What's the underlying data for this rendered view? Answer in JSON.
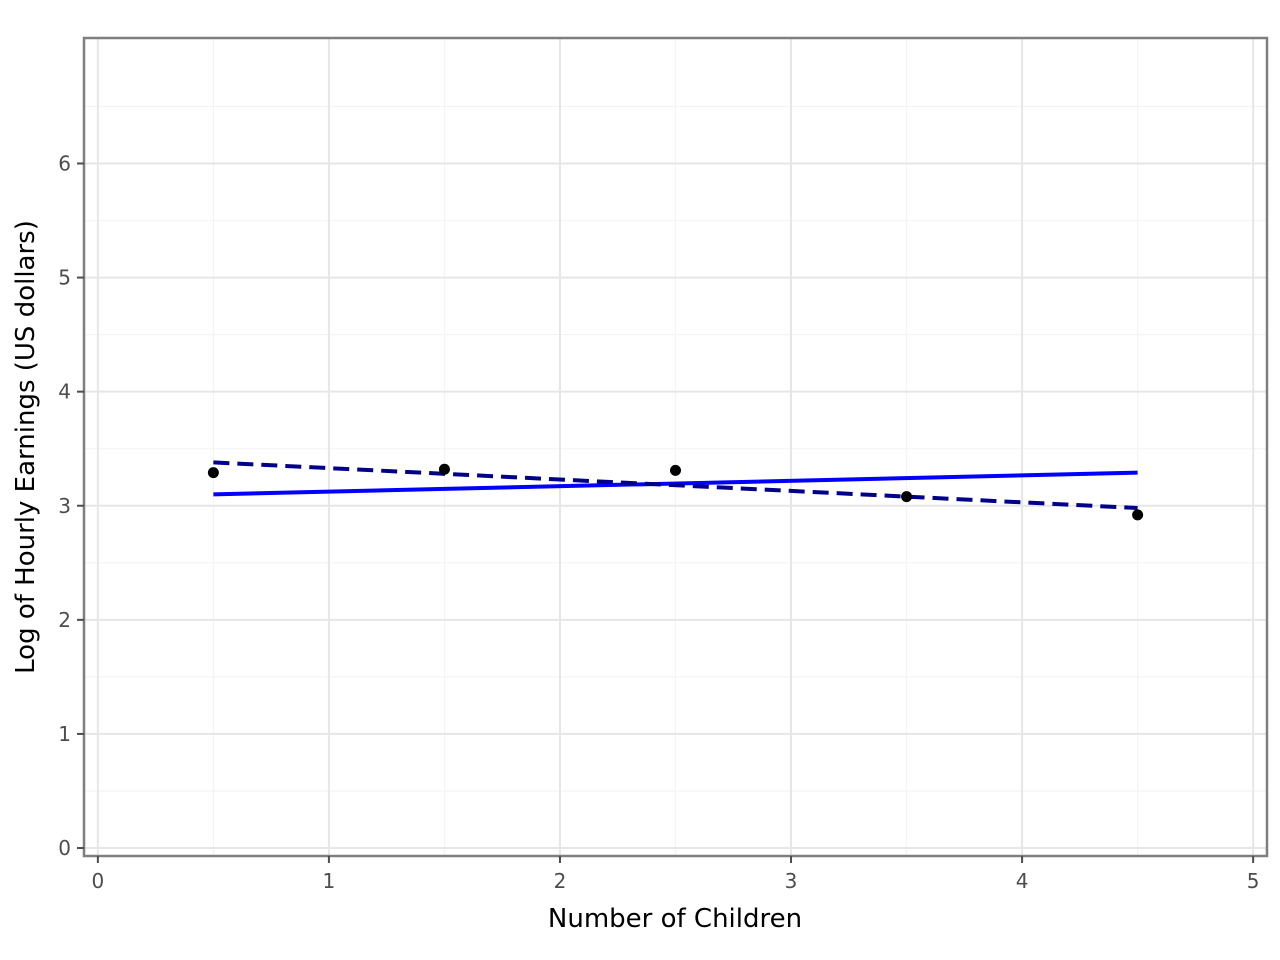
{
  "chart_data": {
    "type": "scatter",
    "title": "",
    "xlabel": "Number of Children",
    "ylabel": "Log of Hourly Earnings (US dollars)",
    "xlim": [
      -0.06,
      5.06
    ],
    "ylim": [
      -0.07,
      7.1
    ],
    "x_ticks": [
      0,
      1,
      2,
      3,
      4,
      5
    ],
    "y_ticks": [
      0,
      1,
      2,
      3,
      4,
      5,
      6
    ],
    "x_tick_labels": [
      "0",
      "1",
      "2",
      "3",
      "4",
      "5"
    ],
    "y_tick_labels": [
      "0",
      "1",
      "2",
      "3",
      "4",
      "5",
      "6"
    ],
    "grid": true,
    "legend": "none",
    "points": {
      "x": [
        0.5,
        1.5,
        2.5,
        3.5,
        4.5
      ],
      "y": [
        3.29,
        3.32,
        3.31,
        3.08,
        2.92
      ],
      "color": "#000000"
    },
    "lines": [
      {
        "style": "solid",
        "color": "#0000ff",
        "x": [
          0.5,
          4.5
        ],
        "y": [
          3.1,
          3.29
        ]
      },
      {
        "style": "dashed",
        "color": "#00008b",
        "x": [
          0.5,
          4.5
        ],
        "y": [
          3.38,
          2.98
        ]
      }
    ]
  }
}
